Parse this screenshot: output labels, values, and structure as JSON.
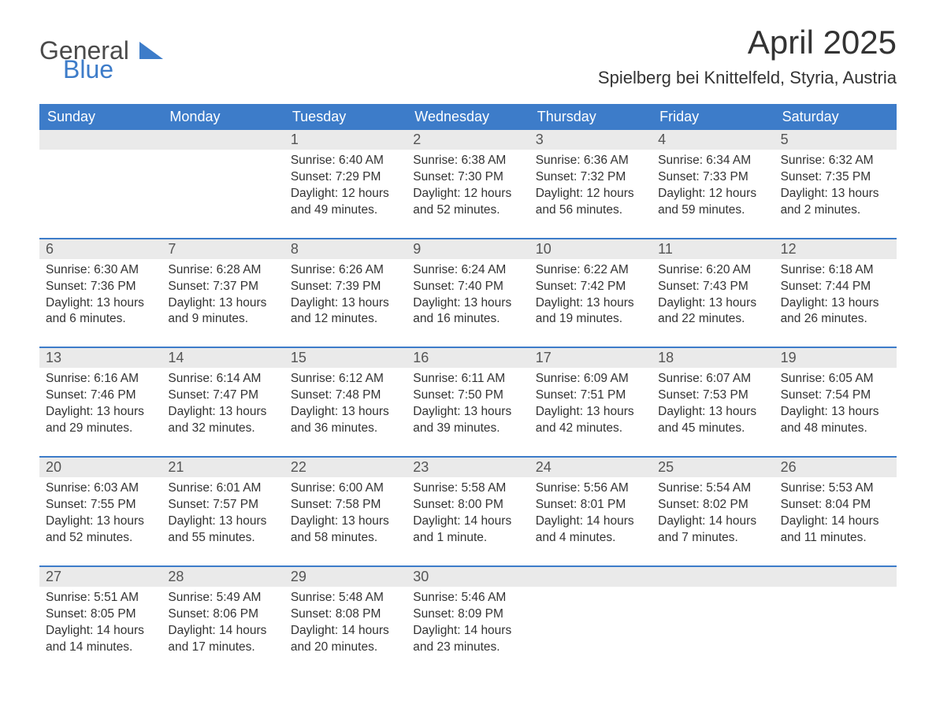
{
  "logo": {
    "general": "General",
    "blue": "Blue"
  },
  "title": "April 2025",
  "location": "Spielberg bei Knittelfeld, Styria, Austria",
  "colors": {
    "header_bg": "#3d7cc9",
    "header_fg": "#ffffff",
    "daynum_bg": "#eaeaea",
    "border": "#3d7cc9",
    "text": "#333333",
    "logo_gray": "#4a4a4a",
    "logo_blue": "#3d7cc9",
    "page_bg": "#ffffff"
  },
  "days_of_week": [
    "Sunday",
    "Monday",
    "Tuesday",
    "Wednesday",
    "Thursday",
    "Friday",
    "Saturday"
  ],
  "weeks": [
    [
      {
        "num": "",
        "sunrise": "",
        "sunset": "",
        "daylight": ""
      },
      {
        "num": "",
        "sunrise": "",
        "sunset": "",
        "daylight": ""
      },
      {
        "num": "1",
        "sunrise": "Sunrise: 6:40 AM",
        "sunset": "Sunset: 7:29 PM",
        "daylight": "Daylight: 12 hours and 49 minutes."
      },
      {
        "num": "2",
        "sunrise": "Sunrise: 6:38 AM",
        "sunset": "Sunset: 7:30 PM",
        "daylight": "Daylight: 12 hours and 52 minutes."
      },
      {
        "num": "3",
        "sunrise": "Sunrise: 6:36 AM",
        "sunset": "Sunset: 7:32 PM",
        "daylight": "Daylight: 12 hours and 56 minutes."
      },
      {
        "num": "4",
        "sunrise": "Sunrise: 6:34 AM",
        "sunset": "Sunset: 7:33 PM",
        "daylight": "Daylight: 12 hours and 59 minutes."
      },
      {
        "num": "5",
        "sunrise": "Sunrise: 6:32 AM",
        "sunset": "Sunset: 7:35 PM",
        "daylight": "Daylight: 13 hours and 2 minutes."
      }
    ],
    [
      {
        "num": "6",
        "sunrise": "Sunrise: 6:30 AM",
        "sunset": "Sunset: 7:36 PM",
        "daylight": "Daylight: 13 hours and 6 minutes."
      },
      {
        "num": "7",
        "sunrise": "Sunrise: 6:28 AM",
        "sunset": "Sunset: 7:37 PM",
        "daylight": "Daylight: 13 hours and 9 minutes."
      },
      {
        "num": "8",
        "sunrise": "Sunrise: 6:26 AM",
        "sunset": "Sunset: 7:39 PM",
        "daylight": "Daylight: 13 hours and 12 minutes."
      },
      {
        "num": "9",
        "sunrise": "Sunrise: 6:24 AM",
        "sunset": "Sunset: 7:40 PM",
        "daylight": "Daylight: 13 hours and 16 minutes."
      },
      {
        "num": "10",
        "sunrise": "Sunrise: 6:22 AM",
        "sunset": "Sunset: 7:42 PM",
        "daylight": "Daylight: 13 hours and 19 minutes."
      },
      {
        "num": "11",
        "sunrise": "Sunrise: 6:20 AM",
        "sunset": "Sunset: 7:43 PM",
        "daylight": "Daylight: 13 hours and 22 minutes."
      },
      {
        "num": "12",
        "sunrise": "Sunrise: 6:18 AM",
        "sunset": "Sunset: 7:44 PM",
        "daylight": "Daylight: 13 hours and 26 minutes."
      }
    ],
    [
      {
        "num": "13",
        "sunrise": "Sunrise: 6:16 AM",
        "sunset": "Sunset: 7:46 PM",
        "daylight": "Daylight: 13 hours and 29 minutes."
      },
      {
        "num": "14",
        "sunrise": "Sunrise: 6:14 AM",
        "sunset": "Sunset: 7:47 PM",
        "daylight": "Daylight: 13 hours and 32 minutes."
      },
      {
        "num": "15",
        "sunrise": "Sunrise: 6:12 AM",
        "sunset": "Sunset: 7:48 PM",
        "daylight": "Daylight: 13 hours and 36 minutes."
      },
      {
        "num": "16",
        "sunrise": "Sunrise: 6:11 AM",
        "sunset": "Sunset: 7:50 PM",
        "daylight": "Daylight: 13 hours and 39 minutes."
      },
      {
        "num": "17",
        "sunrise": "Sunrise: 6:09 AM",
        "sunset": "Sunset: 7:51 PM",
        "daylight": "Daylight: 13 hours and 42 minutes."
      },
      {
        "num": "18",
        "sunrise": "Sunrise: 6:07 AM",
        "sunset": "Sunset: 7:53 PM",
        "daylight": "Daylight: 13 hours and 45 minutes."
      },
      {
        "num": "19",
        "sunrise": "Sunrise: 6:05 AM",
        "sunset": "Sunset: 7:54 PM",
        "daylight": "Daylight: 13 hours and 48 minutes."
      }
    ],
    [
      {
        "num": "20",
        "sunrise": "Sunrise: 6:03 AM",
        "sunset": "Sunset: 7:55 PM",
        "daylight": "Daylight: 13 hours and 52 minutes."
      },
      {
        "num": "21",
        "sunrise": "Sunrise: 6:01 AM",
        "sunset": "Sunset: 7:57 PM",
        "daylight": "Daylight: 13 hours and 55 minutes."
      },
      {
        "num": "22",
        "sunrise": "Sunrise: 6:00 AM",
        "sunset": "Sunset: 7:58 PM",
        "daylight": "Daylight: 13 hours and 58 minutes."
      },
      {
        "num": "23",
        "sunrise": "Sunrise: 5:58 AM",
        "sunset": "Sunset: 8:00 PM",
        "daylight": "Daylight: 14 hours and 1 minute."
      },
      {
        "num": "24",
        "sunrise": "Sunrise: 5:56 AM",
        "sunset": "Sunset: 8:01 PM",
        "daylight": "Daylight: 14 hours and 4 minutes."
      },
      {
        "num": "25",
        "sunrise": "Sunrise: 5:54 AM",
        "sunset": "Sunset: 8:02 PM",
        "daylight": "Daylight: 14 hours and 7 minutes."
      },
      {
        "num": "26",
        "sunrise": "Sunrise: 5:53 AM",
        "sunset": "Sunset: 8:04 PM",
        "daylight": "Daylight: 14 hours and 11 minutes."
      }
    ],
    [
      {
        "num": "27",
        "sunrise": "Sunrise: 5:51 AM",
        "sunset": "Sunset: 8:05 PM",
        "daylight": "Daylight: 14 hours and 14 minutes."
      },
      {
        "num": "28",
        "sunrise": "Sunrise: 5:49 AM",
        "sunset": "Sunset: 8:06 PM",
        "daylight": "Daylight: 14 hours and 17 minutes."
      },
      {
        "num": "29",
        "sunrise": "Sunrise: 5:48 AM",
        "sunset": "Sunset: 8:08 PM",
        "daylight": "Daylight: 14 hours and 20 minutes."
      },
      {
        "num": "30",
        "sunrise": "Sunrise: 5:46 AM",
        "sunset": "Sunset: 8:09 PM",
        "daylight": "Daylight: 14 hours and 23 minutes."
      },
      {
        "num": "",
        "sunrise": "",
        "sunset": "",
        "daylight": ""
      },
      {
        "num": "",
        "sunrise": "",
        "sunset": "",
        "daylight": ""
      },
      {
        "num": "",
        "sunrise": "",
        "sunset": "",
        "daylight": ""
      }
    ]
  ]
}
